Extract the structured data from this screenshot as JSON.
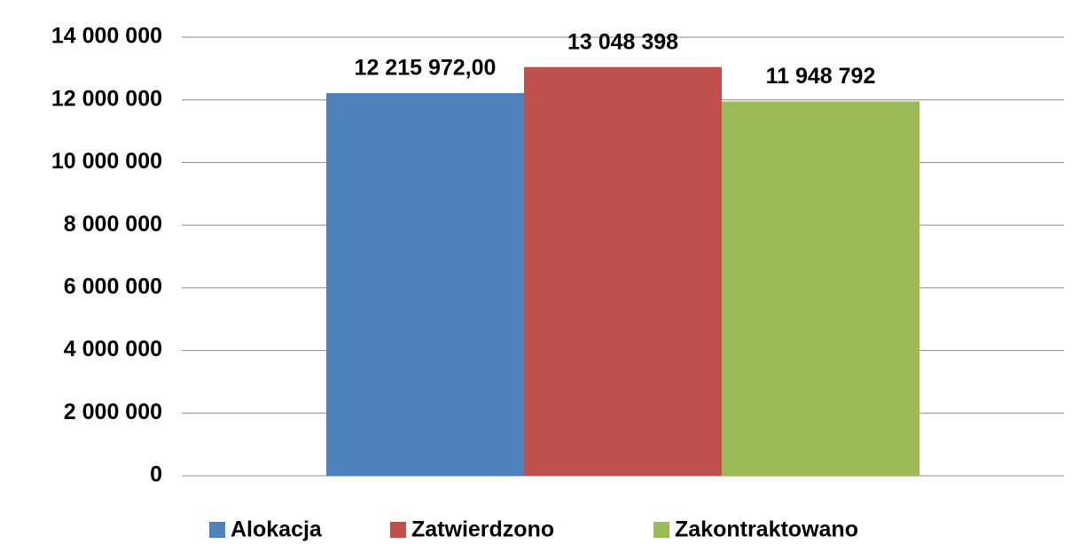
{
  "chart_data": {
    "type": "bar",
    "categories": [
      null
    ],
    "series": [
      {
        "name": "Alokacja",
        "color": "#4f81bd",
        "values": [
          12215972
        ],
        "value_labels": [
          "12 215 972,00"
        ]
      },
      {
        "name": "Zatwierdzono",
        "color": "#c0504d",
        "values": [
          13048398
        ],
        "value_labels": [
          "13 048 398"
        ]
      },
      {
        "name": "Zakontraktowano",
        "color": "#9bbb59",
        "values": [
          11948792
        ],
        "value_labels": [
          "11 948 792"
        ]
      }
    ],
    "ylim": [
      0,
      14000000
    ],
    "yticks": [
      0,
      {
        "value": 2000000,
        "label": "2 000 000"
      },
      {
        "value": 4000000,
        "label": "4 000 000"
      },
      {
        "value": 6000000,
        "label": "6 000 000"
      },
      {
        "value": 8000000,
        "label": "8 000 000"
      },
      {
        "value": 10000000,
        "label": "10 000 000"
      },
      {
        "value": 12000000,
        "label": "12 000 000"
      },
      {
        "value": 14000000,
        "label": "14 000 000"
      }
    ],
    "grid": true,
    "legend": "bottom"
  }
}
